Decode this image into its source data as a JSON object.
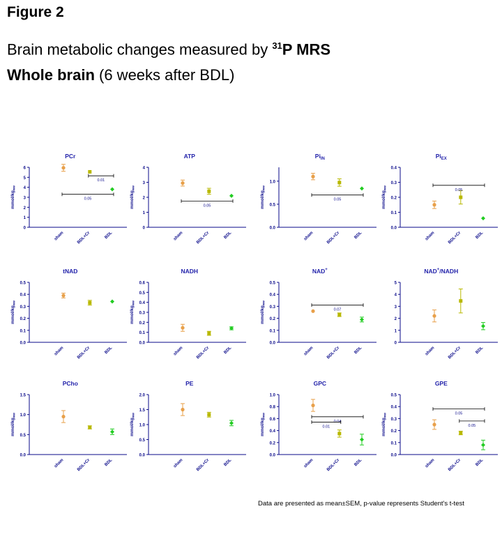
{
  "header": {
    "figure_label": "Figure 2",
    "title_prefix": "Brain metabolic changes measured by ",
    "title_isotope": "31",
    "title_method": "P MRS",
    "subtitle_bold": "Whole brain",
    "subtitle_rest": " (6 weeks after BDL)"
  },
  "footnote": "Data  are presented as mean±SEM,   p-value represents Student's t-test",
  "colors": {
    "axis": "#0a0a8a",
    "sham": "#e8a04a",
    "bdl_cr": "#b8b800",
    "bdl": "#22cc22",
    "label_text": "#2222aa"
  },
  "chart_data": [
    {
      "type": "scatter",
      "title": "PCr",
      "title_sub": "",
      "title_sup": "",
      "ylabel": "mmol/kg",
      "ylabel_sub": "ww",
      "categories": [
        "sham",
        "BDL+Cr",
        "BDL"
      ],
      "ylim": [
        0,
        6
      ],
      "yticks": [
        "0",
        "1",
        "2",
        "3",
        "4",
        "5",
        "6"
      ],
      "ytick_values": [
        0,
        1,
        2,
        3,
        4,
        5,
        6
      ],
      "means": [
        5.95,
        5.55,
        3.8
      ],
      "sem": [
        0.35,
        0.0,
        0.0
      ],
      "brackets": [
        {
          "from": 1,
          "to": 2,
          "label": "0.01",
          "level": 5.15
        },
        {
          "from": 0,
          "to": 2,
          "label": "0.05",
          "level": 3.3
        }
      ]
    },
    {
      "type": "scatter",
      "title": "ATP",
      "title_sub": "",
      "title_sup": "",
      "ylabel": "mmol/kg",
      "ylabel_sub": "ww",
      "categories": [
        "sham",
        "BDL+Cr",
        "BDL"
      ],
      "ylim": [
        0,
        4
      ],
      "yticks": [
        "0",
        "1",
        "2",
        "3",
        "4"
      ],
      "ytick_values": [
        0,
        1,
        2,
        3,
        4
      ],
      "means": [
        2.95,
        2.4,
        2.1
      ],
      "sem": [
        0.2,
        0.2,
        0.0
      ],
      "brackets": [
        {
          "from": 0,
          "to": 2,
          "label": "0.05",
          "level": 1.75
        }
      ]
    },
    {
      "type": "scatter",
      "title": "Pi",
      "title_sub": "IN",
      "title_sup": "",
      "ylabel": "mmol/kg",
      "ylabel_sub": "ww",
      "categories": [
        "sham",
        "BDL+Cr",
        "BDL"
      ],
      "ylim": [
        0,
        1.3
      ],
      "yticks": [
        "0.0",
        "0.5",
        "1.0"
      ],
      "ytick_values": [
        0,
        0.5,
        1.0
      ],
      "means": [
        1.1,
        0.97,
        0.84
      ],
      "sem": [
        0.07,
        0.08,
        0.0
      ],
      "brackets": [
        {
          "from": 0,
          "to": 2,
          "label": "0.05",
          "level": 0.7
        }
      ]
    },
    {
      "type": "scatter",
      "title": "Pi",
      "title_sub": "EX",
      "title_sup": "",
      "ylabel": "mmol/kg",
      "ylabel_sub": "ww",
      "categories": [
        "sham",
        "BDL+Cr",
        "BDL"
      ],
      "ylim": [
        0,
        0.4
      ],
      "yticks": [
        "0.0",
        "0.1",
        "0.2",
        "0.3",
        "0.4"
      ],
      "ytick_values": [
        0,
        0.1,
        0.2,
        0.3,
        0.4
      ],
      "means": [
        0.15,
        0.2,
        0.06
      ],
      "sem": [
        0.025,
        0.045,
        0.0
      ],
      "brackets": [
        {
          "from": 0,
          "to": 2,
          "label": "0.05",
          "level": 0.28
        }
      ]
    },
    {
      "type": "scatter",
      "title": "tNAD",
      "title_sub": "",
      "title_sup": "",
      "ylabel": "mmol/kg",
      "ylabel_sub": "ww",
      "categories": [
        "sham",
        "BDL+Cr",
        "BDL"
      ],
      "ylim": [
        0,
        0.5
      ],
      "yticks": [
        "0.0",
        "0.1",
        "0.2",
        "0.3",
        "0.4",
        "0.5"
      ],
      "ytick_values": [
        0,
        0.1,
        0.2,
        0.3,
        0.4,
        0.5
      ],
      "means": [
        0.39,
        0.33,
        0.34
      ],
      "sem": [
        0.02,
        0.02,
        0.0
      ],
      "brackets": []
    },
    {
      "type": "scatter",
      "title": "NADH",
      "title_sub": "",
      "title_sup": "",
      "ylabel": "mmol/kg",
      "ylabel_sub": "ww",
      "categories": [
        "sham",
        "BDL+Cr",
        "BDL"
      ],
      "ylim": [
        0,
        0.6
      ],
      "yticks": [
        "0.0",
        "0.1",
        "0.2",
        "0.3",
        "0.4",
        "0.5",
        "0.6"
      ],
      "ytick_values": [
        0,
        0.1,
        0.2,
        0.3,
        0.4,
        0.5,
        0.6
      ],
      "means": [
        0.145,
        0.09,
        0.14
      ],
      "sem": [
        0.035,
        0.02,
        0.015
      ],
      "brackets": []
    },
    {
      "type": "scatter",
      "title": "NAD",
      "title_sub": "",
      "title_sup": "+",
      "ylabel": "mmol/kg",
      "ylabel_sub": "ww",
      "categories": [
        "sham",
        "BDL+Cr",
        "BDL"
      ],
      "ylim": [
        0,
        0.5
      ],
      "yticks": [
        "0.0",
        "0.1",
        "0.2",
        "0.3",
        "0.4",
        "0.5"
      ],
      "ytick_values": [
        0,
        0.1,
        0.2,
        0.3,
        0.4,
        0.5
      ],
      "means": [
        0.26,
        0.23,
        0.19
      ],
      "sem": [
        0.0,
        0.015,
        0.02
      ],
      "brackets": [
        {
          "from": 0,
          "to": 2,
          "label": "0.07",
          "level": 0.31
        }
      ]
    },
    {
      "type": "scatter",
      "title": "NAD",
      "title_sub": "",
      "title_sup": "+",
      "title_suffix": "/NADH",
      "ylabel": "",
      "ylabel_sub": "",
      "categories": [
        "sham",
        "BDL+Cr",
        "BDL"
      ],
      "ylim": [
        0,
        5
      ],
      "yticks": [
        "0",
        "1",
        "2",
        "3",
        "4",
        "5"
      ],
      "ytick_values": [
        0,
        1,
        2,
        3,
        4,
        5
      ],
      "means": [
        2.2,
        3.45,
        1.35
      ],
      "sem": [
        0.5,
        1.0,
        0.3
      ],
      "brackets": []
    },
    {
      "type": "scatter",
      "title": "PCho",
      "title_sub": "",
      "title_sup": "",
      "ylabel": "mmol/kg",
      "ylabel_sub": "ww",
      "categories": [
        "sham",
        "BDL+Cr",
        "BDL"
      ],
      "ylim": [
        0,
        1.5
      ],
      "yticks": [
        "0.0",
        "0.5",
        "1.0",
        "1.5"
      ],
      "ytick_values": [
        0,
        0.5,
        1.0,
        1.5
      ],
      "means": [
        0.95,
        0.68,
        0.57
      ],
      "sem": [
        0.15,
        0.04,
        0.07
      ],
      "brackets": []
    },
    {
      "type": "scatter",
      "title": "PE",
      "title_sub": "",
      "title_sup": "",
      "ylabel": "mmol/kg",
      "ylabel_sub": "ww",
      "categories": [
        "sham",
        "BDL+Cr",
        "BDL"
      ],
      "ylim": [
        0,
        2.0
      ],
      "yticks": [
        "0.0",
        "0.5",
        "1.0",
        "1.5",
        "2.0"
      ],
      "ytick_values": [
        0,
        0.5,
        1.0,
        1.5,
        2.0
      ],
      "means": [
        1.5,
        1.33,
        1.05
      ],
      "sem": [
        0.2,
        0.08,
        0.09
      ],
      "brackets": []
    },
    {
      "type": "scatter",
      "title": "GPC",
      "title_sub": "",
      "title_sup": "",
      "ylabel": "mmol/kg",
      "ylabel_sub": "ww",
      "categories": [
        "sham",
        "BDL+Cr",
        "BDL"
      ],
      "ylim": [
        0,
        1.0
      ],
      "yticks": [
        "0.0",
        "0.2",
        "0.4",
        "0.6",
        "0.8",
        "1.0"
      ],
      "ytick_values": [
        0,
        0.2,
        0.4,
        0.6,
        0.8,
        1.0
      ],
      "means": [
        0.82,
        0.35,
        0.25
      ],
      "sem": [
        0.1,
        0.06,
        0.09
      ],
      "brackets": [
        {
          "from": 0,
          "to": 2,
          "label": "0.04",
          "level": 0.63
        },
        {
          "from": 0,
          "to": 1,
          "label": "0.01",
          "level": 0.54
        }
      ]
    },
    {
      "type": "scatter",
      "title": "GPE",
      "title_sub": "",
      "title_sup": "",
      "ylabel": "mmol/kg",
      "ylabel_sub": "ww",
      "categories": [
        "sham",
        "BDL+Cr",
        "BDL"
      ],
      "ylim": [
        0,
        0.5
      ],
      "yticks": [
        "0.0",
        "0.1",
        "0.2",
        "0.3",
        "0.4",
        "0.5"
      ],
      "ytick_values": [
        0,
        0.1,
        0.2,
        0.3,
        0.4,
        0.5
      ],
      "means": [
        0.25,
        0.18,
        0.08
      ],
      "sem": [
        0.04,
        0.015,
        0.04
      ],
      "brackets": [
        {
          "from": 0,
          "to": 2,
          "label": "0.05",
          "level": 0.38
        },
        {
          "from": 1,
          "to": 2,
          "label": "0.05",
          "level": 0.28
        }
      ]
    }
  ]
}
